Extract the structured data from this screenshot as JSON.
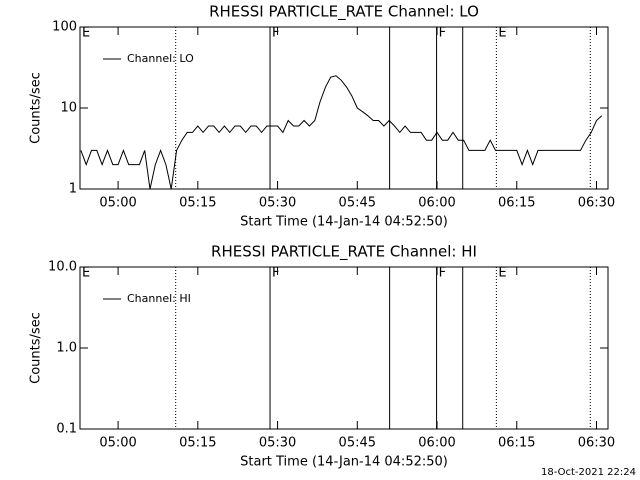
{
  "chart_data": [
    {
      "type": "line",
      "title": "RHESSI PARTICLE_RATE Channel: LO",
      "xlabel": "Start Time (14-Jan-14 04:52:50)",
      "ylabel": "Counts/sec",
      "xlim": [
        "04:52:50",
        "06:32:10"
      ],
      "xticks": [
        "05:00",
        "05:15",
        "05:30",
        "05:45",
        "06:00",
        "06:15",
        "06:30"
      ],
      "ylim": [
        1,
        100
      ],
      "yticks": [
        1,
        10,
        100
      ],
      "log_y": true,
      "legend": "upper left",
      "vlines": [
        {
          "x": "05:10:50",
          "style": "dotted"
        },
        {
          "x": "05:28:35",
          "style": "solid"
        },
        {
          "x": "05:51:05",
          "style": "solid"
        },
        {
          "x": "05:59:55",
          "style": "solid"
        },
        {
          "x": "06:04:50",
          "style": "solid"
        },
        {
          "x": "06:11:10",
          "style": "dotted"
        },
        {
          "x": "06:28:50",
          "style": "dotted"
        }
      ],
      "annotations": [
        {
          "text": "E",
          "x": "04:52:50"
        },
        {
          "text": "F",
          "x": "05:28:35"
        },
        {
          "text": "F",
          "x": "05:59:55"
        },
        {
          "text": "E",
          "x": "06:11:10"
        }
      ],
      "x": [
        "04:53",
        "04:54",
        "04:55",
        "04:56",
        "04:57",
        "04:58",
        "04:59",
        "05:00",
        "05:01",
        "05:02",
        "05:03",
        "05:04",
        "05:05",
        "05:06",
        "05:07",
        "05:08",
        "05:09",
        "05:10",
        "05:11",
        "05:12",
        "05:13",
        "05:14",
        "05:15",
        "05:16",
        "05:17",
        "05:18",
        "05:19",
        "05:20",
        "05:21",
        "05:22",
        "05:23",
        "05:24",
        "05:25",
        "05:26",
        "05:27",
        "05:28",
        "05:29",
        "05:30",
        "05:31",
        "05:32",
        "05:33",
        "05:34",
        "05:35",
        "05:36",
        "05:37",
        "05:38",
        "05:39",
        "05:40",
        "05:41",
        "05:42",
        "05:43",
        "05:44",
        "05:45",
        "05:46",
        "05:47",
        "05:48",
        "05:49",
        "05:50",
        "05:51",
        "05:52",
        "05:53",
        "05:54",
        "05:55",
        "05:56",
        "05:57",
        "05:58",
        "05:59",
        "06:00",
        "06:01",
        "06:02",
        "06:03",
        "06:04",
        "06:05",
        "06:06",
        "06:07",
        "06:08",
        "06:09",
        "06:10",
        "06:11",
        "06:12",
        "06:13",
        "06:14",
        "06:15",
        "06:16",
        "06:17",
        "06:18",
        "06:19",
        "06:20",
        "06:21",
        "06:22",
        "06:23",
        "06:24",
        "06:25",
        "06:26",
        "06:27",
        "06:28",
        "06:29",
        "06:30",
        "06:31"
      ],
      "series": [
        {
          "name": "Channel: LO",
          "color": "#000000",
          "values": [
            3,
            2,
            3,
            3,
            2,
            3,
            2,
            2,
            3,
            2,
            2,
            2,
            3,
            1,
            2,
            3,
            2,
            1,
            3,
            4,
            5,
            5,
            6,
            5,
            6,
            6,
            5,
            6,
            5,
            6,
            6,
            5,
            6,
            6,
            5,
            6,
            6,
            6,
            5,
            7,
            6,
            6,
            7,
            6,
            7,
            12,
            18,
            24,
            25,
            22,
            18,
            14,
            10,
            9,
            8,
            7,
            7,
            6,
            7,
            6,
            5,
            6,
            5,
            5,
            5,
            4,
            4,
            5,
            4,
            4,
            5,
            4,
            4,
            3,
            3,
            3,
            3,
            4,
            3,
            3,
            3,
            3,
            3,
            2,
            3,
            2,
            3,
            3,
            3,
            3,
            3,
            3,
            3,
            3,
            3,
            4,
            5,
            7,
            8
          ]
        }
      ]
    },
    {
      "type": "line",
      "title": "RHESSI PARTICLE_RATE Channel: HI",
      "xlabel": "Start Time (14-Jan-14 04:52:50)",
      "ylabel": "Counts/sec",
      "xlim": [
        "04:52:50",
        "06:32:10"
      ],
      "xticks": [
        "05:00",
        "05:15",
        "05:30",
        "05:45",
        "06:00",
        "06:15",
        "06:30"
      ],
      "ylim": [
        0.1,
        10
      ],
      "yticks": [
        0.1,
        {
          "value": 1,
          "label": "1.0"
        },
        {
          "value": 10,
          "label": "10.0"
        }
      ],
      "log_y": true,
      "legend": "upper left",
      "vlines": [
        {
          "x": "05:10:50",
          "style": "dotted"
        },
        {
          "x": "05:28:35",
          "style": "solid"
        },
        {
          "x": "05:51:05",
          "style": "solid"
        },
        {
          "x": "05:59:55",
          "style": "solid"
        },
        {
          "x": "06:04:50",
          "style": "solid"
        },
        {
          "x": "06:11:10",
          "style": "dotted"
        },
        {
          "x": "06:28:50",
          "style": "dotted"
        }
      ],
      "annotations": [
        {
          "text": "E",
          "x": "04:52:50"
        },
        {
          "text": "F",
          "x": "05:28:35"
        },
        {
          "text": "F",
          "x": "05:59:55"
        },
        {
          "text": "E",
          "x": "06:11:10"
        }
      ],
      "x": [],
      "series": [
        {
          "name": "Channel: HI",
          "color": "#000000",
          "values": []
        }
      ]
    }
  ],
  "footer": "18-Oct-2021 22:24"
}
